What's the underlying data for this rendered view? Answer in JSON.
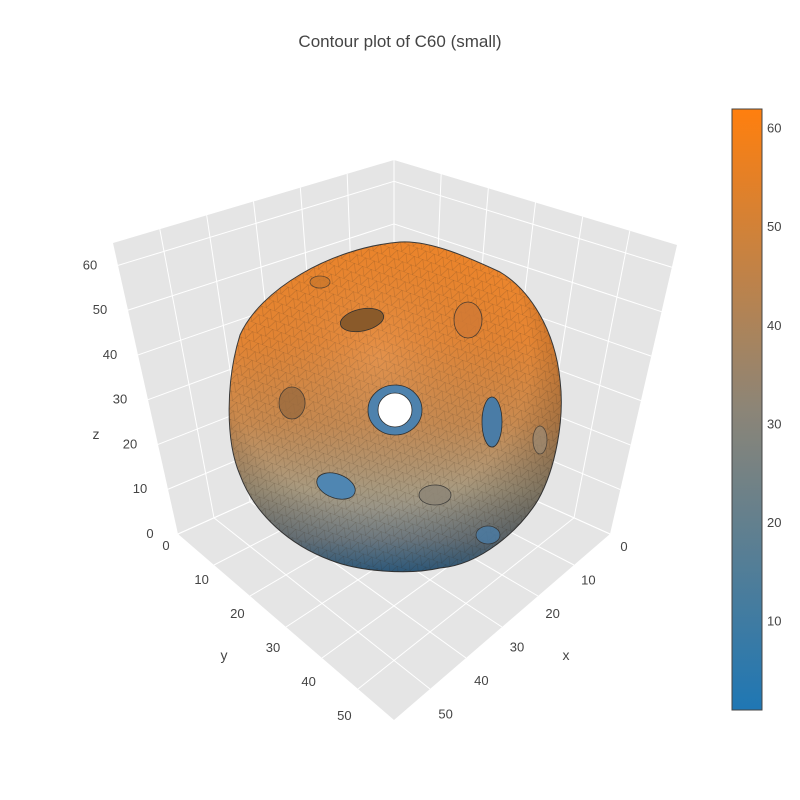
{
  "chart_data": {
    "type": "3d-isosurface",
    "title": "Contour plot of C60 (small)",
    "axes": {
      "x": {
        "label": "x",
        "ticks": [
          "0",
          "10",
          "20",
          "30",
          "40",
          "50"
        ],
        "range": [
          0,
          60
        ]
      },
      "y": {
        "label": "y",
        "ticks": [
          "0",
          "10",
          "20",
          "30",
          "40",
          "50"
        ],
        "range": [
          0,
          60
        ]
      },
      "z": {
        "label": "z",
        "ticks": [
          "0",
          "10",
          "20",
          "30",
          "40",
          "50",
          "60"
        ],
        "range": [
          0,
          65
        ]
      }
    },
    "grid": true,
    "surface": {
      "shape": "truncated icosahedron (C60 fullerene) isosurface",
      "center": [
        32,
        32,
        32
      ],
      "mesh": "triangulated"
    },
    "colorbar": {
      "ticks": [
        "10",
        "20",
        "30",
        "40",
        "50",
        "60"
      ],
      "range": [
        1,
        62
      ],
      "colorscale": [
        [
          0,
          "#1f77b4"
        ],
        [
          0.5,
          "#8c8577"
        ],
        [
          1,
          "#ff7f0e"
        ]
      ],
      "placement": "right"
    },
    "colors": {
      "scene_background": "#e5e5e5",
      "grid_lines": "#ffffff",
      "text": "#444444"
    }
  }
}
